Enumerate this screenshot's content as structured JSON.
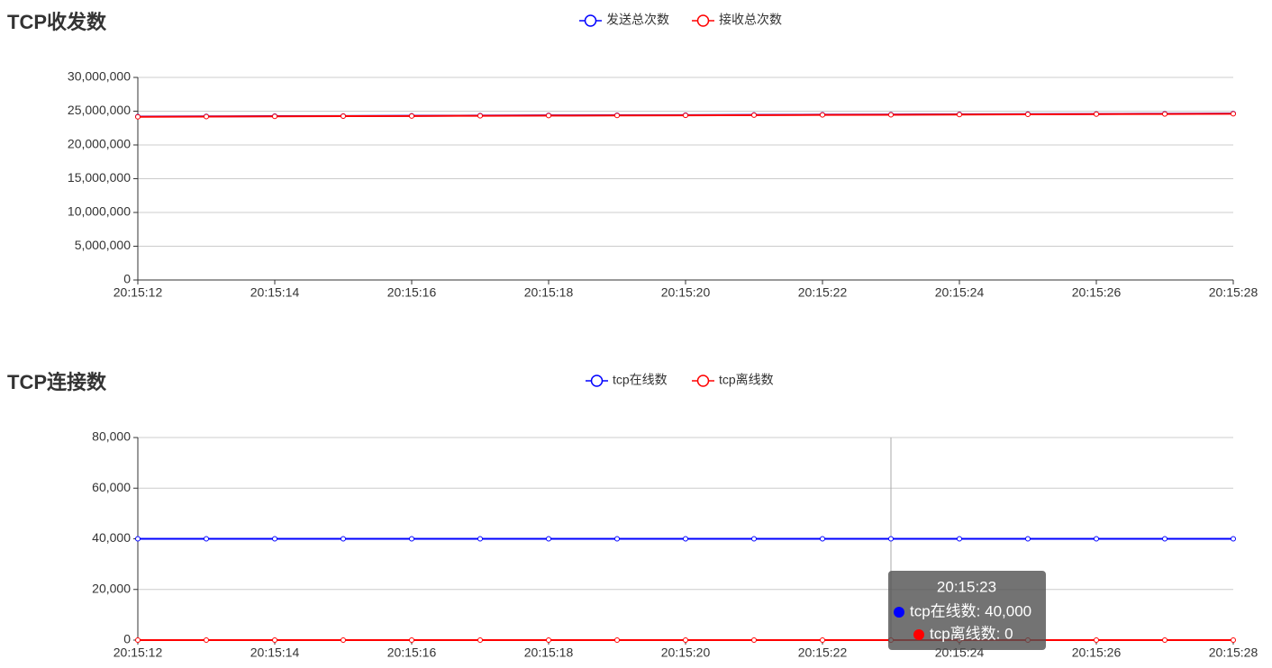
{
  "chart_data": [
    {
      "type": "line",
      "title": "TCP收发数",
      "categories": [
        "20:15:12",
        null,
        "20:15:14",
        null,
        "20:15:16",
        null,
        "20:15:18",
        null,
        "20:15:20",
        null,
        "20:15:22",
        null,
        "20:15:24",
        null,
        "20:15:26",
        null,
        "20:15:28"
      ],
      "series": [
        {
          "name": "发送总次数",
          "color": "#0000ff",
          "values": [
            24200000,
            24230000,
            24260000,
            24290000,
            24320000,
            24350000,
            24380000,
            24400000,
            24420000,
            24450000,
            24480000,
            24500000,
            24530000,
            24560000,
            24590000,
            24620000,
            24650000
          ]
        },
        {
          "name": "接收总次数",
          "color": "#ff0000",
          "values": [
            24170000,
            24200000,
            24230000,
            24260000,
            24290000,
            24320000,
            24350000,
            24370000,
            24390000,
            24420000,
            24450000,
            24470000,
            24500000,
            24530000,
            24560000,
            24590000,
            24620000
          ]
        }
      ],
      "ylim": [
        0,
        30000000
      ],
      "yticks": [
        0,
        {
          "value": 5000000,
          "label": "5,000,000"
        },
        {
          "value": 10000000,
          "label": "10,000,000"
        },
        {
          "value": 15000000,
          "label": "15,000,000"
        },
        {
          "value": 20000000,
          "label": "20,000,000"
        },
        {
          "value": 25000000,
          "label": "25,000,000"
        },
        {
          "value": 30000000,
          "label": "30,000,000"
        }
      ],
      "grid": true
    },
    {
      "type": "line",
      "title": "TCP连接数",
      "categories": [
        "20:15:12",
        null,
        "20:15:14",
        null,
        "20:15:16",
        null,
        "20:15:18",
        null,
        "20:15:20",
        null,
        "20:15:22",
        null,
        "20:15:24",
        null,
        "20:15:26",
        null,
        "20:15:28"
      ],
      "series": [
        {
          "name": "tcp在线数",
          "color": "#0000ff",
          "values": [
            40000,
            40000,
            40000,
            40000,
            40000,
            40000,
            40000,
            40000,
            40000,
            40000,
            40000,
            40000,
            40000,
            40000,
            40000,
            40000,
            40000
          ]
        },
        {
          "name": "tcp离线数",
          "color": "#ff0000",
          "values": [
            0,
            0,
            0,
            0,
            0,
            0,
            0,
            0,
            0,
            0,
            0,
            0,
            0,
            0,
            0,
            0,
            0
          ]
        }
      ],
      "ylim": [
        0,
        80000
      ],
      "yticks": [
        0,
        {
          "value": 20000,
          "label": "20,000"
        },
        {
          "value": 40000,
          "label": "40,000"
        },
        {
          "value": 60000,
          "label": "60,000"
        },
        {
          "value": 80000,
          "label": "80,000"
        }
      ],
      "grid": true,
      "tooltip": {
        "title": "20:15:23",
        "labels": [
          "tcp在线数: 40,000",
          "tcp离线数: 0"
        ]
      }
    }
  ]
}
